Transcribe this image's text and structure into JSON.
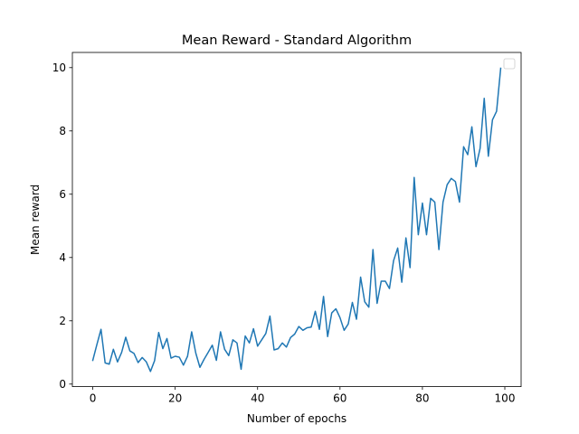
{
  "chart_data": {
    "type": "line",
    "title": "Mean Reward - Standard Algorithm",
    "xlabel": "Number of epochs",
    "ylabel": "Mean reward",
    "xlim": [
      -4.95,
      103.95
    ],
    "ylim": [
      -0.08,
      10.48
    ],
    "xticks": [
      0,
      20,
      40,
      60,
      80,
      100
    ],
    "yticks": [
      0,
      2,
      4,
      6,
      8,
      10
    ],
    "grid": false,
    "legend": "top-right (empty)",
    "series": [
      {
        "color": "#1f77b4",
        "x": [
          0,
          1,
          2,
          3,
          4,
          5,
          6,
          7,
          8,
          9,
          10,
          11,
          12,
          13,
          14,
          15,
          16,
          17,
          18,
          19,
          20,
          21,
          22,
          23,
          24,
          25,
          26,
          27,
          28,
          29,
          30,
          31,
          32,
          33,
          34,
          35,
          36,
          37,
          38,
          39,
          40,
          41,
          42,
          43,
          44,
          45,
          46,
          47,
          48,
          49,
          50,
          51,
          52,
          53,
          54,
          55,
          56,
          57,
          58,
          59,
          60,
          61,
          62,
          63,
          64,
          65,
          66,
          67,
          68,
          69,
          70,
          71,
          72,
          73,
          74,
          75,
          76,
          77,
          78,
          79,
          80,
          81,
          82,
          83,
          84,
          85,
          86,
          87,
          88,
          89,
          90,
          91,
          92,
          93,
          94,
          95,
          96,
          97,
          98,
          99
        ],
        "y": [
          0.75,
          1.25,
          1.73,
          0.67,
          0.63,
          1.1,
          0.7,
          1.0,
          1.48,
          1.05,
          0.97,
          0.68,
          0.84,
          0.7,
          0.4,
          0.74,
          1.63,
          1.12,
          1.44,
          0.82,
          0.88,
          0.85,
          0.6,
          0.88,
          1.65,
          0.98,
          0.53,
          0.78,
          1.0,
          1.23,
          0.75,
          1.65,
          1.1,
          0.9,
          1.4,
          1.3,
          0.47,
          1.52,
          1.3,
          1.75,
          1.2,
          1.4,
          1.6,
          2.15,
          1.08,
          1.12,
          1.3,
          1.17,
          1.47,
          1.58,
          1.82,
          1.7,
          1.78,
          1.8,
          2.3,
          1.73,
          2.77,
          1.5,
          2.25,
          2.38,
          2.1,
          1.7,
          1.9,
          2.58,
          2.05,
          3.38,
          2.6,
          2.43,
          4.25,
          2.55,
          3.25,
          3.25,
          3.02,
          3.9,
          4.3,
          3.22,
          4.62,
          3.68,
          6.53,
          4.72,
          5.72,
          4.72,
          5.87,
          5.75,
          4.25,
          5.75,
          6.3,
          6.5,
          6.4,
          5.75,
          7.5,
          7.25,
          8.13,
          6.87,
          7.45,
          9.03,
          7.2,
          8.35,
          8.62,
          9.98
        ]
      }
    ]
  }
}
